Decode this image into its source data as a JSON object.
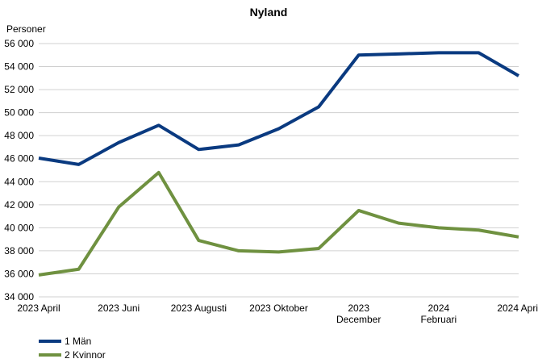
{
  "chart_data": {
    "type": "line",
    "title": "Nyland",
    "y_label": "Personer",
    "categories": [
      "2023 April",
      null,
      "2023 Juni",
      null,
      "2023 Augusti",
      null,
      "2023 Oktober",
      null,
      "2023\nDecember",
      null,
      "2024\nFebruari",
      null,
      "2024 April"
    ],
    "series": [
      {
        "name": "1 Män",
        "color": "#0a3a80",
        "values": [
          46050,
          45500,
          47400,
          48900,
          46800,
          47200,
          48600,
          50500,
          55000,
          55100,
          55200,
          55200,
          53200
        ]
      },
      {
        "name": "2 Kvinnor",
        "color": "#6f9140",
        "values": [
          35900,
          36400,
          41800,
          44800,
          38900,
          38000,
          37900,
          38200,
          41500,
          40400,
          40000,
          39800,
          39200
        ]
      }
    ],
    "ylim": [
      34000,
      56000
    ],
    "yticks": [
      {
        "value": 34000,
        "label": "34 000"
      },
      {
        "value": 36000,
        "label": "36 000"
      },
      {
        "value": 38000,
        "label": "38 000"
      },
      {
        "value": 40000,
        "label": "40 000"
      },
      {
        "value": 42000,
        "label": "42 000"
      },
      {
        "value": 44000,
        "label": "44 000"
      },
      {
        "value": 46000,
        "label": "46 000"
      },
      {
        "value": 48000,
        "label": "48 000"
      },
      {
        "value": 50000,
        "label": "50 000"
      },
      {
        "value": 52000,
        "label": "52 000"
      },
      {
        "value": 54000,
        "label": "54 000"
      },
      {
        "value": 56000,
        "label": "56 000"
      }
    ],
    "grid": true
  }
}
